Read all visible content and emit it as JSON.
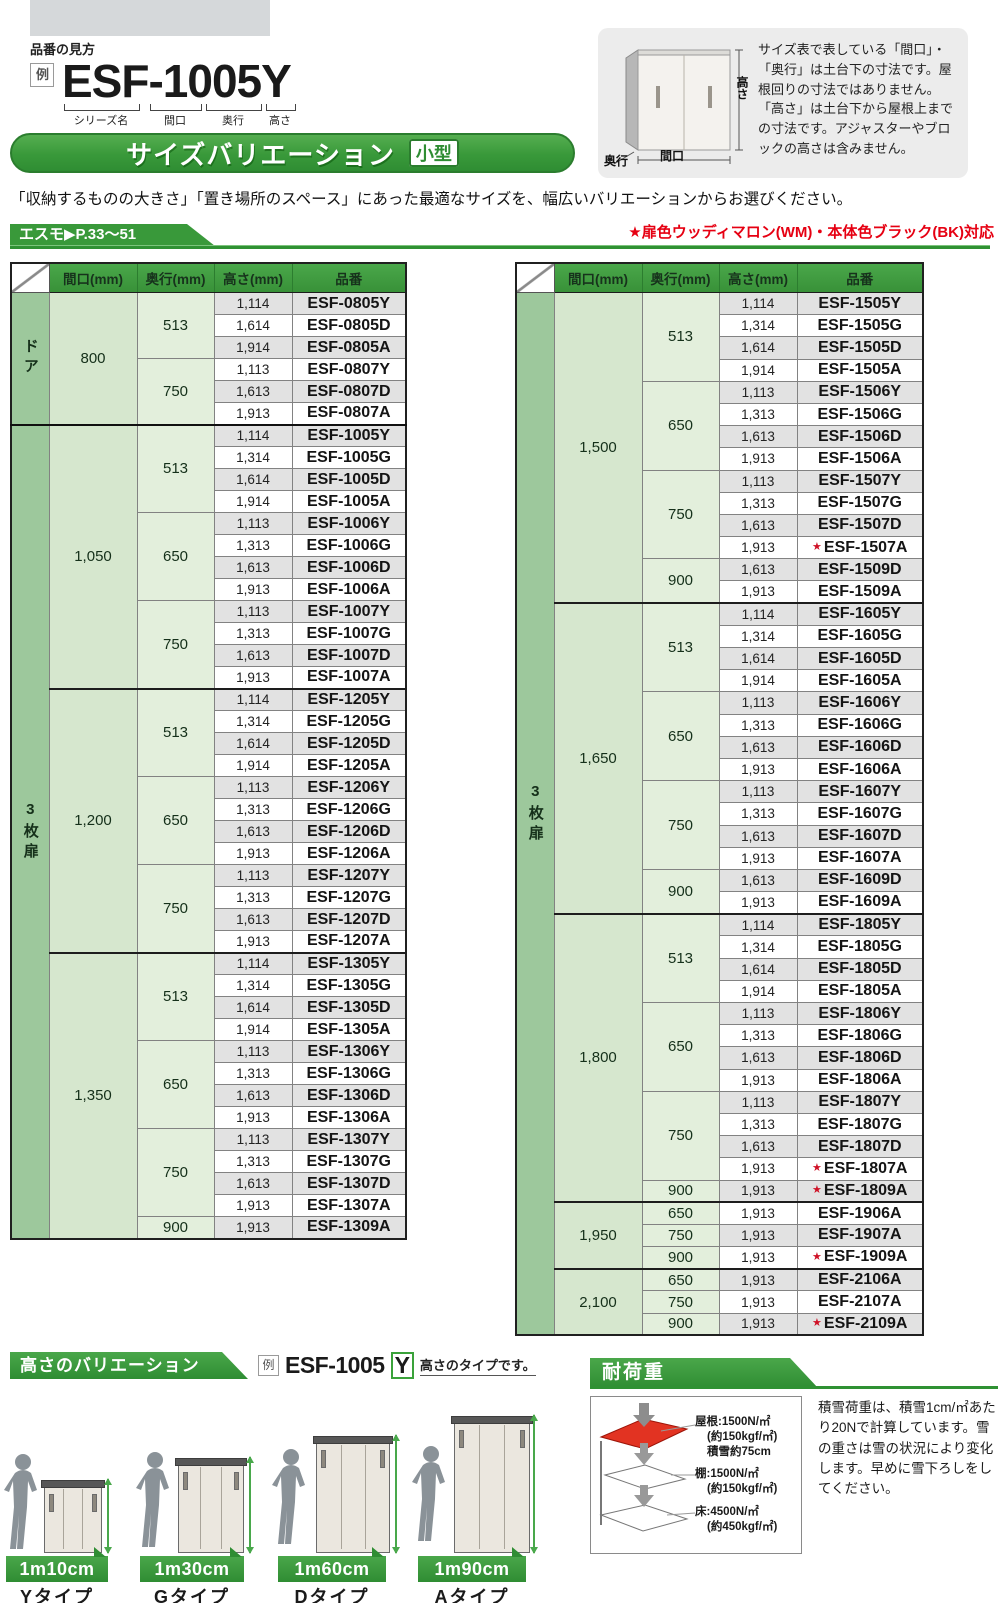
{
  "header": {
    "section_label": "品番の見方",
    "example_tag": "例",
    "example_code": "ESF-1005Y",
    "code_parts": [
      "シリーズ名",
      "間口",
      "奥行",
      "高さ"
    ],
    "banner_title": "サイズバリエーション",
    "banner_badge": "小型",
    "description": "「収納するものの大きさ」「置き場所のスペース」にあった最適なサイズを、幅広いバリエーションからお選びください。",
    "series_tab": "エスモ▶P.33〜51",
    "color_note": "★扉色ウッディマロン(WM)・本体色ブラック(BK)対応",
    "info_text": "サイズ表で表している「間口」・「奥行」は土台下の寸法です。屋根回りの寸法ではありません。「高さ」は土台下から屋根上までの寸法です。アジャスターやブロックの高さは含みません。",
    "info_labels": {
      "height": "高さ",
      "width": "間口",
      "depth": "奥行"
    }
  },
  "table_headers": [
    "間口(mm)",
    "奥行(mm)",
    "高さ(mm)",
    "品番"
  ],
  "left_table": {
    "sections": [
      {
        "label": "ドア",
        "groups": [
          {
            "width": "800",
            "depths": [
              {
                "depth": "513",
                "rows": [
                  [
                    "1,114",
                    "ESF-0805Y"
                  ],
                  [
                    "1,614",
                    "ESF-0805D"
                  ],
                  [
                    "1,914",
                    "ESF-0805A"
                  ]
                ]
              },
              {
                "depth": "750",
                "rows": [
                  [
                    "1,113",
                    "ESF-0807Y"
                  ],
                  [
                    "1,613",
                    "ESF-0807D"
                  ],
                  [
                    "1,913",
                    "ESF-0807A"
                  ]
                ]
              }
            ]
          }
        ]
      },
      {
        "label": "3枚扉",
        "groups": [
          {
            "width": "1,050",
            "depths": [
              {
                "depth": "513",
                "rows": [
                  [
                    "1,114",
                    "ESF-1005Y"
                  ],
                  [
                    "1,314",
                    "ESF-1005G"
                  ],
                  [
                    "1,614",
                    "ESF-1005D"
                  ],
                  [
                    "1,914",
                    "ESF-1005A"
                  ]
                ]
              },
              {
                "depth": "650",
                "rows": [
                  [
                    "1,113",
                    "ESF-1006Y"
                  ],
                  [
                    "1,313",
                    "ESF-1006G"
                  ],
                  [
                    "1,613",
                    "ESF-1006D"
                  ],
                  [
                    "1,913",
                    "ESF-1006A"
                  ]
                ]
              },
              {
                "depth": "750",
                "rows": [
                  [
                    "1,113",
                    "ESF-1007Y"
                  ],
                  [
                    "1,313",
                    "ESF-1007G"
                  ],
                  [
                    "1,613",
                    "ESF-1007D"
                  ],
                  [
                    "1,913",
                    "ESF-1007A"
                  ]
                ]
              }
            ]
          },
          {
            "width": "1,200",
            "depths": [
              {
                "depth": "513",
                "rows": [
                  [
                    "1,114",
                    "ESF-1205Y"
                  ],
                  [
                    "1,314",
                    "ESF-1205G"
                  ],
                  [
                    "1,614",
                    "ESF-1205D"
                  ],
                  [
                    "1,914",
                    "ESF-1205A"
                  ]
                ]
              },
              {
                "depth": "650",
                "rows": [
                  [
                    "1,113",
                    "ESF-1206Y"
                  ],
                  [
                    "1,313",
                    "ESF-1206G"
                  ],
                  [
                    "1,613",
                    "ESF-1206D"
                  ],
                  [
                    "1,913",
                    "ESF-1206A"
                  ]
                ]
              },
              {
                "depth": "750",
                "rows": [
                  [
                    "1,113",
                    "ESF-1207Y"
                  ],
                  [
                    "1,313",
                    "ESF-1207G"
                  ],
                  [
                    "1,613",
                    "ESF-1207D"
                  ],
                  [
                    "1,913",
                    "ESF-1207A"
                  ]
                ]
              }
            ]
          },
          {
            "width": "1,350",
            "depths": [
              {
                "depth": "513",
                "rows": [
                  [
                    "1,114",
                    "ESF-1305Y"
                  ],
                  [
                    "1,314",
                    "ESF-1305G"
                  ],
                  [
                    "1,614",
                    "ESF-1305D"
                  ],
                  [
                    "1,914",
                    "ESF-1305A"
                  ]
                ]
              },
              {
                "depth": "650",
                "rows": [
                  [
                    "1,113",
                    "ESF-1306Y"
                  ],
                  [
                    "1,313",
                    "ESF-1306G"
                  ],
                  [
                    "1,613",
                    "ESF-1306D"
                  ],
                  [
                    "1,913",
                    "ESF-1306A"
                  ]
                ]
              },
              {
                "depth": "750",
                "rows": [
                  [
                    "1,113",
                    "ESF-1307Y"
                  ],
                  [
                    "1,313",
                    "ESF-1307G"
                  ],
                  [
                    "1,613",
                    "ESF-1307D"
                  ],
                  [
                    "1,913",
                    "ESF-1307A"
                  ]
                ]
              },
              {
                "depth": "900",
                "rows": [
                  [
                    "1,913",
                    "ESF-1309A"
                  ]
                ]
              }
            ]
          }
        ]
      }
    ]
  },
  "right_table": {
    "sections": [
      {
        "label": "3枚扉",
        "groups": [
          {
            "width": "1,500",
            "depths": [
              {
                "depth": "513",
                "rows": [
                  [
                    "1,114",
                    "ESF-1505Y"
                  ],
                  [
                    "1,314",
                    "ESF-1505G"
                  ],
                  [
                    "1,614",
                    "ESF-1505D"
                  ],
                  [
                    "1,914",
                    "ESF-1505A"
                  ]
                ]
              },
              {
                "depth": "650",
                "rows": [
                  [
                    "1,113",
                    "ESF-1506Y"
                  ],
                  [
                    "1,313",
                    "ESF-1506G"
                  ],
                  [
                    "1,613",
                    "ESF-1506D"
                  ],
                  [
                    "1,913",
                    "ESF-1506A"
                  ]
                ]
              },
              {
                "depth": "750",
                "rows": [
                  [
                    "1,113",
                    "ESF-1507Y"
                  ],
                  [
                    "1,313",
                    "ESF-1507G"
                  ],
                  [
                    "1,613",
                    "ESF-1507D"
                  ],
                  [
                    "1,913",
                    "ESF-1507A",
                    "★"
                  ]
                ]
              },
              {
                "depth": "900",
                "rows": [
                  [
                    "1,613",
                    "ESF-1509D"
                  ],
                  [
                    "1,913",
                    "ESF-1509A"
                  ]
                ]
              }
            ]
          },
          {
            "width": "1,650",
            "depths": [
              {
                "depth": "513",
                "rows": [
                  [
                    "1,114",
                    "ESF-1605Y"
                  ],
                  [
                    "1,314",
                    "ESF-1605G"
                  ],
                  [
                    "1,614",
                    "ESF-1605D"
                  ],
                  [
                    "1,914",
                    "ESF-1605A"
                  ]
                ]
              },
              {
                "depth": "650",
                "rows": [
                  [
                    "1,113",
                    "ESF-1606Y"
                  ],
                  [
                    "1,313",
                    "ESF-1606G"
                  ],
                  [
                    "1,613",
                    "ESF-1606D"
                  ],
                  [
                    "1,913",
                    "ESF-1606A"
                  ]
                ]
              },
              {
                "depth": "750",
                "rows": [
                  [
                    "1,113",
                    "ESF-1607Y"
                  ],
                  [
                    "1,313",
                    "ESF-1607G"
                  ],
                  [
                    "1,613",
                    "ESF-1607D"
                  ],
                  [
                    "1,913",
                    "ESF-1607A"
                  ]
                ]
              },
              {
                "depth": "900",
                "rows": [
                  [
                    "1,613",
                    "ESF-1609D"
                  ],
                  [
                    "1,913",
                    "ESF-1609A"
                  ]
                ]
              }
            ]
          },
          {
            "width": "1,800",
            "depths": [
              {
                "depth": "513",
                "rows": [
                  [
                    "1,114",
                    "ESF-1805Y"
                  ],
                  [
                    "1,314",
                    "ESF-1805G"
                  ],
                  [
                    "1,614",
                    "ESF-1805D"
                  ],
                  [
                    "1,914",
                    "ESF-1805A"
                  ]
                ]
              },
              {
                "depth": "650",
                "rows": [
                  [
                    "1,113",
                    "ESF-1806Y"
                  ],
                  [
                    "1,313",
                    "ESF-1806G"
                  ],
                  [
                    "1,613",
                    "ESF-1806D"
                  ],
                  [
                    "1,913",
                    "ESF-1806A"
                  ]
                ]
              },
              {
                "depth": "750",
                "rows": [
                  [
                    "1,113",
                    "ESF-1807Y"
                  ],
                  [
                    "1,313",
                    "ESF-1807G"
                  ],
                  [
                    "1,613",
                    "ESF-1807D"
                  ],
                  [
                    "1,913",
                    "ESF-1807A",
                    "★"
                  ]
                ]
              },
              {
                "depth": "900",
                "rows": [
                  [
                    "1,913",
                    "ESF-1809A",
                    "★"
                  ]
                ]
              }
            ]
          },
          {
            "width": "1,950",
            "depths": [
              {
                "depth": "650",
                "rows": [
                  [
                    "1,913",
                    "ESF-1906A"
                  ]
                ]
              },
              {
                "depth": "750",
                "rows": [
                  [
                    "1,913",
                    "ESF-1907A"
                  ]
                ]
              },
              {
                "depth": "900",
                "rows": [
                  [
                    "1,913",
                    "ESF-1909A",
                    "★"
                  ]
                ]
              }
            ]
          },
          {
            "width": "2,100",
            "depths": [
              {
                "depth": "650",
                "rows": [
                  [
                    "1,913",
                    "ESF-2106A"
                  ]
                ]
              },
              {
                "depth": "750",
                "rows": [
                  [
                    "1,913",
                    "ESF-2107A"
                  ]
                ]
              },
              {
                "depth": "900",
                "rows": [
                  [
                    "1,913",
                    "ESF-2109A",
                    "★"
                  ]
                ]
              }
            ]
          }
        ]
      }
    ]
  },
  "height_section": {
    "title": "高さのバリエーション",
    "example_tag": "例",
    "example_code": "ESF-1005",
    "example_suffix": "Y",
    "example_note": "高さのタイプです。"
  },
  "height_types": [
    {
      "height_label": "1m10cm",
      "type_label": "Yタイプ"
    },
    {
      "height_label": "1m30cm",
      "type_label": "Gタイプ"
    },
    {
      "height_label": "1m60cm",
      "type_label": "Dタイプ"
    },
    {
      "height_label": "1m90cm",
      "type_label": "Aタイプ"
    }
  ],
  "load_section": {
    "title": "耐荷重",
    "roof_label": "屋根:1500N/㎡",
    "roof_sub": "(約150kgf/㎡)",
    "roof_snow": "積雪約75cm",
    "shelf_label": "棚:1500N/㎡",
    "shelf_sub": "(約150kgf/㎡)",
    "floor_label": "床:4500N/㎡",
    "floor_sub": "(約450kgf/㎡)",
    "note": "積雪荷重は、積雪1cm/㎡あたり20Nで計算しています。雪の重さは雪の状況により変化します。早めに雪下ろしをしてください。"
  },
  "colors": {
    "accent_green": "#2f9133",
    "star_red": "#cf1126",
    "note_red": "#e60012"
  }
}
